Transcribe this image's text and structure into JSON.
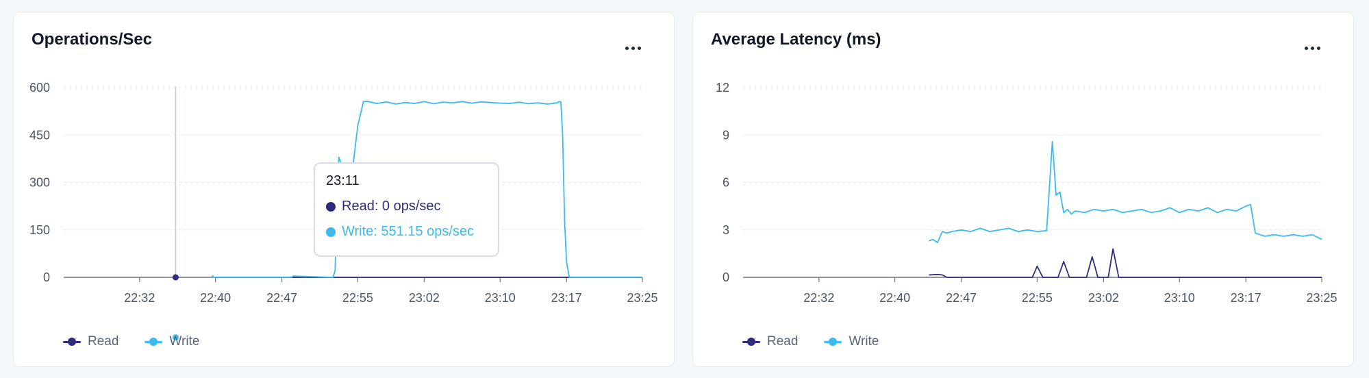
{
  "colors": {
    "read": "#2e2c7a",
    "write": "#3bbaee",
    "grid": "#e3e7ec",
    "axis": "#6b7280"
  },
  "panels": [
    {
      "id": "ops",
      "title": "Operations/Sec",
      "more_icon": "more-horizontal-icon",
      "tooltip": {
        "time": "23:11",
        "read_text": "Read: 0 ops/sec",
        "write_text": "Write: 551.15 ops/sec",
        "hover_x": 11.8
      },
      "legend": [
        {
          "name": "Read"
        },
        {
          "name": "Write"
        }
      ]
    },
    {
      "id": "lat",
      "title": "Average Latency (ms)",
      "more_icon": "more-horizontal-icon",
      "legend": [
        {
          "name": "Read"
        },
        {
          "name": "Write"
        }
      ]
    }
  ],
  "chart_data": [
    {
      "type": "line",
      "title": "Operations/Sec",
      "xlabel": "",
      "ylabel": "",
      "x_unit": "minutes after 22:24",
      "xlim": [
        0,
        61
      ],
      "ylim": [
        0,
        600
      ],
      "yticks": [
        "0",
        "150",
        "300",
        "450",
        "600"
      ],
      "ytick_values": [
        0,
        150,
        300,
        450,
        600
      ],
      "xticks": [
        "22:32",
        "22:40",
        "22:47",
        "22:55",
        "23:02",
        "23:10",
        "23:17",
        "23:25"
      ],
      "xtick_values": [
        8,
        16,
        23,
        31,
        38,
        46,
        53,
        61
      ],
      "grid": true,
      "legend_position": "bottom-left",
      "series": [
        {
          "name": "Read",
          "x": [
            16,
            61
          ],
          "y": [
            0,
            0
          ]
        },
        {
          "name": "Write",
          "x": [
            15.6,
            15.7,
            15.8,
            24,
            24.2,
            28.4,
            28.6,
            29,
            29.6,
            29.8,
            30,
            30.2,
            30.6,
            31,
            31.6,
            32,
            33,
            34,
            35,
            36,
            37,
            38,
            39,
            40,
            41,
            42,
            43,
            44,
            45,
            46,
            47,
            48,
            49,
            50,
            51,
            52,
            52.2,
            52.4,
            52.6,
            52.8,
            53,
            53.3,
            61
          ],
          "y": [
            0,
            5,
            0,
            0,
            4,
            0,
            20,
            380,
            330,
            200,
            180,
            290,
            380,
            480,
            556,
            557,
            550,
            555,
            548,
            553,
            550,
            556,
            549,
            554,
            552,
            556,
            551,
            555,
            553,
            551,
            550,
            554,
            549,
            552,
            548,
            552,
            556,
            555,
            450,
            180,
            50,
            0,
            0
          ]
        }
      ]
    },
    {
      "type": "line",
      "title": "Average Latency (ms)",
      "xlabel": "",
      "ylabel": "",
      "x_unit": "minutes after 22:24",
      "xlim": [
        0,
        61
      ],
      "ylim": [
        0,
        12
      ],
      "yticks": [
        "0",
        "3",
        "6",
        "9",
        "12"
      ],
      "ytick_values": [
        0,
        3,
        6,
        9,
        12
      ],
      "xticks": [
        "22:32",
        "22:40",
        "22:47",
        "22:55",
        "23:02",
        "23:10",
        "23:17",
        "23:25"
      ],
      "xtick_values": [
        8,
        16,
        23,
        31,
        38,
        46,
        53,
        61
      ],
      "grid": true,
      "legend_position": "bottom-left",
      "series": [
        {
          "name": "Read",
          "x": [
            19.6,
            20.5,
            21,
            21.5,
            22,
            30.5,
            31,
            31.6,
            32,
            33.2,
            33.8,
            34.4,
            36.2,
            36.8,
            37.4,
            38.5,
            39,
            39.6,
            61
          ],
          "y": [
            0.15,
            0.18,
            0.15,
            0,
            0,
            0,
            0.7,
            0,
            0,
            0,
            1.0,
            0,
            0,
            1.3,
            0,
            0,
            1.8,
            0,
            0
          ]
        },
        {
          "name": "Write",
          "x": [
            19.6,
            20,
            20.5,
            21,
            21.5,
            22,
            23,
            24,
            25,
            26,
            27,
            28,
            29,
            30,
            31,
            32,
            32.6,
            33,
            33.4,
            33.8,
            34.2,
            34.6,
            35,
            36,
            37,
            38,
            39,
            40,
            41,
            42,
            43,
            44,
            45,
            46,
            47,
            48,
            49,
            50,
            51,
            52,
            53,
            53.5,
            54,
            54.5,
            55,
            56,
            57,
            58,
            59,
            60,
            61
          ],
          "y": [
            2.3,
            2.4,
            2.2,
            2.9,
            2.8,
            2.9,
            3.0,
            2.9,
            3.1,
            2.9,
            3.0,
            3.1,
            2.9,
            3.0,
            2.9,
            2.95,
            8.6,
            5.2,
            5.4,
            4.1,
            4.3,
            4.0,
            4.2,
            4.1,
            4.3,
            4.2,
            4.3,
            4.1,
            4.2,
            4.3,
            4.1,
            4.2,
            4.4,
            4.1,
            4.3,
            4.2,
            4.4,
            4.1,
            4.3,
            4.2,
            4.5,
            4.6,
            2.8,
            2.7,
            2.6,
            2.7,
            2.6,
            2.7,
            2.6,
            2.7,
            2.4
          ]
        }
      ]
    }
  ]
}
